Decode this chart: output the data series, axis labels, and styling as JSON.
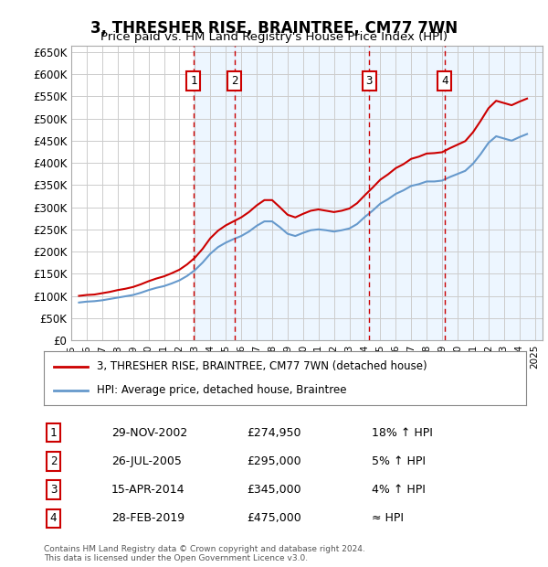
{
  "title": "3, THRESHER RISE, BRAINTREE, CM77 7WN",
  "subtitle": "Price paid vs. HM Land Registry's House Price Index (HPI)",
  "ylabel_ticks": [
    "£0",
    "£50K",
    "£100K",
    "£150K",
    "£200K",
    "£250K",
    "£300K",
    "£350K",
    "£400K",
    "£450K",
    "£500K",
    "£550K",
    "£600K",
    "£650K"
  ],
  "ytick_values": [
    0,
    50000,
    100000,
    150000,
    200000,
    250000,
    300000,
    350000,
    400000,
    450000,
    500000,
    550000,
    600000,
    650000
  ],
  "ylim": [
    0,
    665000
  ],
  "xlim_start": 1995.0,
  "xlim_end": 2025.5,
  "background_color": "#ffffff",
  "grid_color": "#cccccc",
  "plot_bg_color": "#ffffff",
  "sale_events": [
    {
      "label": "1",
      "date_num": 2002.91,
      "price": 274950,
      "shade_start": 2002.91,
      "shade_end": 2005.56
    },
    {
      "label": "2",
      "date_num": 2005.56,
      "price": 295000,
      "shade_start": 2005.56,
      "shade_end": 2014.28
    },
    {
      "label": "3",
      "date_num": 2014.28,
      "price": 345000,
      "shade_start": 2014.28,
      "shade_end": 2019.16
    },
    {
      "label": "4",
      "date_num": 2019.16,
      "price": 475000,
      "shade_start": 2019.16,
      "shade_end": 2025.5
    }
  ],
  "legend_items": [
    {
      "label": "3, THRESHER RISE, BRAINTREE, CM77 7WN (detached house)",
      "color": "#cc0000",
      "lw": 2.0
    },
    {
      "label": "HPI: Average price, detached house, Braintree",
      "color": "#6699cc",
      "lw": 2.0
    }
  ],
  "table_rows": [
    {
      "num": "1",
      "date": "29-NOV-2002",
      "price": "£274,950",
      "relation": "18% ↑ HPI"
    },
    {
      "num": "2",
      "date": "26-JUL-2005",
      "price": "£295,000",
      "relation": "5% ↑ HPI"
    },
    {
      "num": "3",
      "date": "15-APR-2014",
      "price": "£345,000",
      "relation": "4% ↑ HPI"
    },
    {
      "num": "4",
      "date": "28-FEB-2019",
      "price": "£475,000",
      "relation": "≈ HPI"
    }
  ],
  "footer": "Contains HM Land Registry data © Crown copyright and database right 2024.\nThis data is licensed under the Open Government Licence v3.0.",
  "hpi_base_value": 100000,
  "hpi_data": {
    "years": [
      1995.5,
      1996.0,
      1996.5,
      1997.0,
      1997.5,
      1998.0,
      1998.5,
      1999.0,
      1999.5,
      2000.0,
      2000.5,
      2001.0,
      2001.5,
      2002.0,
      2002.5,
      2003.0,
      2003.5,
      2004.0,
      2004.5,
      2005.0,
      2005.5,
      2006.0,
      2006.5,
      2007.0,
      2007.5,
      2008.0,
      2008.5,
      2009.0,
      2009.5,
      2010.0,
      2010.5,
      2011.0,
      2011.5,
      2012.0,
      2012.5,
      2013.0,
      2013.5,
      2014.0,
      2014.5,
      2015.0,
      2015.5,
      2016.0,
      2016.5,
      2017.0,
      2017.5,
      2018.0,
      2018.5,
      2019.0,
      2019.5,
      2020.0,
      2020.5,
      2021.0,
      2021.5,
      2022.0,
      2022.5,
      2023.0,
      2023.5,
      2024.0,
      2024.5
    ],
    "hpi_braintree": [
      85000,
      87000,
      88000,
      90000,
      93000,
      96000,
      99000,
      102000,
      107000,
      113000,
      118000,
      122000,
      128000,
      135000,
      145000,
      158000,
      175000,
      195000,
      210000,
      220000,
      228000,
      235000,
      245000,
      258000,
      268000,
      268000,
      255000,
      240000,
      235000,
      242000,
      248000,
      250000,
      248000,
      245000,
      248000,
      252000,
      262000,
      278000,
      292000,
      308000,
      318000,
      330000,
      338000,
      348000,
      352000,
      358000,
      358000,
      360000,
      368000,
      375000,
      382000,
      398000,
      420000,
      445000,
      460000,
      455000,
      450000,
      458000,
      465000
    ],
    "red_line": [
      100000,
      102000,
      103000,
      106000,
      109000,
      113000,
      116000,
      120000,
      126000,
      133000,
      139000,
      144000,
      151000,
      159000,
      171000,
      186000,
      206000,
      230000,
      247000,
      259000,
      268000,
      277000,
      289000,
      304000,
      316000,
      316000,
      300000,
      283000,
      277000,
      285000,
      292000,
      295000,
      292000,
      289000,
      292000,
      297000,
      309000,
      327000,
      344000,
      362000,
      374000,
      388000,
      397000,
      409000,
      414000,
      421000,
      422000,
      424000,
      433000,
      441000,
      449000,
      469000,
      495000,
      523000,
      540000,
      535000,
      530000,
      538000,
      545000
    ]
  }
}
